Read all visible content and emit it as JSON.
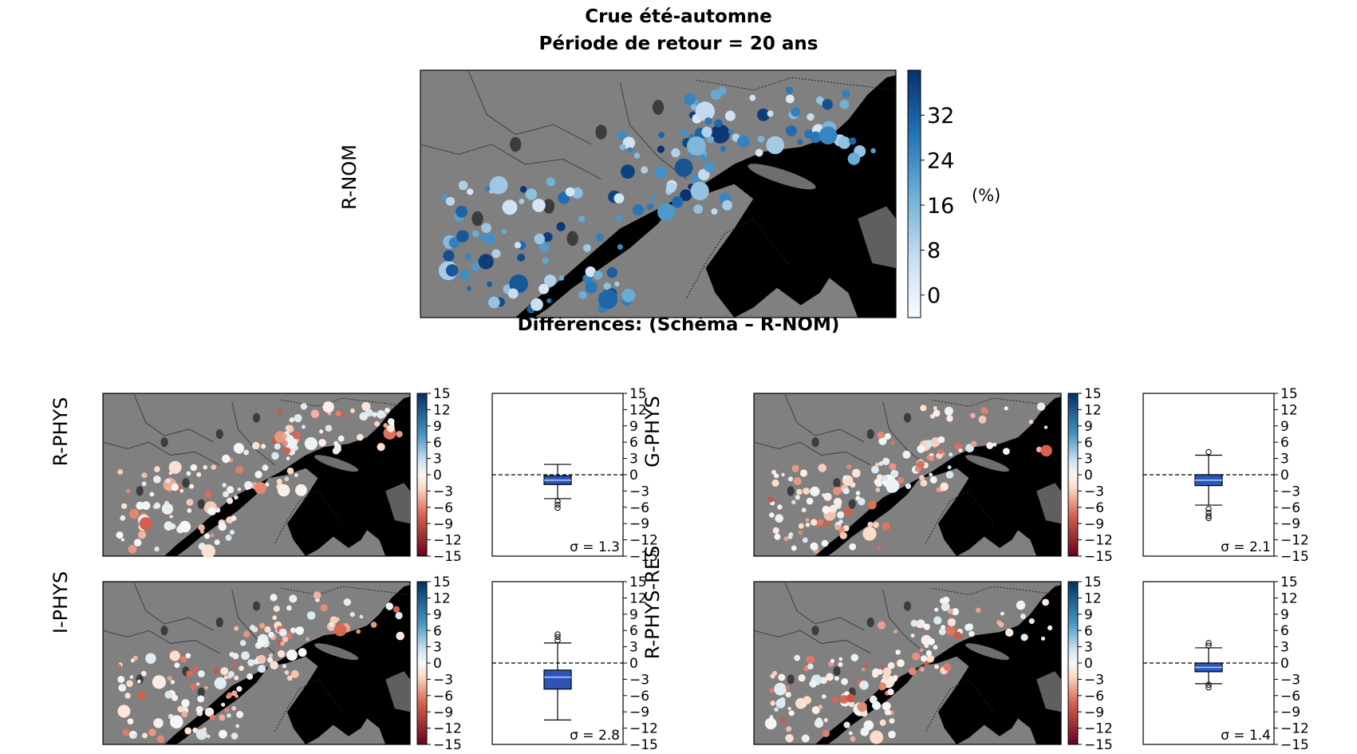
{
  "header": {
    "title_line1": "Crue été-automne",
    "title_line2": "Période de retour = 20 ans",
    "diff_title": "Différences: (Schéma – R-NOM)"
  },
  "colors": {
    "land": "#808080",
    "water": "#000000",
    "blue_scale": [
      "#f7fbff",
      "#c6dbef",
      "#6baed6",
      "#2171b5",
      "#08306b"
    ],
    "diverging_scale": [
      "#67001f",
      "#d6604d",
      "#fddbc7",
      "#f7f7f7",
      "#d1e5f0",
      "#4393c3",
      "#053061"
    ],
    "box_fill": "#2f54b8"
  },
  "chart_data": [
    {
      "type": "scatter",
      "panel": "R-NOM",
      "colorbar_label": "(%)",
      "colorbar_ticks": [
        "32",
        "24",
        "16",
        "8",
        "0"
      ],
      "colorbar_range": [
        -4,
        40
      ]
    },
    {
      "type": "scatter",
      "panel": "R-PHYS",
      "colorbar_ticks": [
        "15",
        "12",
        "9",
        "6",
        "3",
        "0",
        "−3",
        "−6",
        "−9",
        "−12",
        "−15"
      ],
      "colorbar_range": [
        -15,
        15
      ],
      "box": {
        "ylim": [
          -15,
          15
        ],
        "median": -1,
        "q1": -1.8,
        "q3": -0.2,
        "whisker_low": -4.4,
        "whisker_high": 1.9,
        "outliers": [
          -4.9,
          -5.5,
          -6.1
        ],
        "sigma_label": "σ = 1.3"
      }
    },
    {
      "type": "scatter",
      "panel": "G-PHYS",
      "colorbar_ticks": [
        "15",
        "12",
        "9",
        "6",
        "3",
        "0",
        "−3",
        "−6",
        "−9",
        "−12",
        "−15"
      ],
      "colorbar_range": [
        -15,
        15
      ],
      "box": {
        "ylim": [
          -15,
          15
        ],
        "median": -1,
        "q1": -2,
        "q3": 0,
        "whisker_low": -5.6,
        "whisker_high": 3.6,
        "outliers": [
          4.2,
          -6.3,
          -7,
          -7.6,
          -8
        ],
        "sigma_label": "σ = 2.1"
      }
    },
    {
      "type": "scatter",
      "panel": "I-PHYS",
      "colorbar_ticks": [
        "15",
        "12",
        "9",
        "6",
        "3",
        "0",
        "−3",
        "−6",
        "−9",
        "−12",
        "−15"
      ],
      "colorbar_range": [
        -15,
        15
      ],
      "box": {
        "ylim": [
          -15,
          15
        ],
        "median": -2.6,
        "q1": -4.8,
        "q3": -1.3,
        "whisker_low": -10.5,
        "whisker_high": 3.7,
        "outliers": [
          4.2,
          4.8,
          5.3
        ],
        "sigma_label": "σ = 2.8"
      }
    },
    {
      "type": "scatter",
      "panel": "R-PHYS-RES",
      "colorbar_ticks": [
        "15",
        "12",
        "9",
        "6",
        "3",
        "0",
        "−3",
        "−6",
        "−9",
        "−12",
        "−15"
      ],
      "colorbar_range": [
        -15,
        15
      ],
      "box": {
        "ylim": [
          -15,
          15
        ],
        "median": -0.8,
        "q1": -1.6,
        "q3": 0,
        "whisker_low": -3.8,
        "whisker_high": 2.8,
        "outliers": [
          3.2,
          3.7,
          -4,
          -4.5
        ],
        "sigma_label": "σ = 1.4"
      }
    }
  ]
}
